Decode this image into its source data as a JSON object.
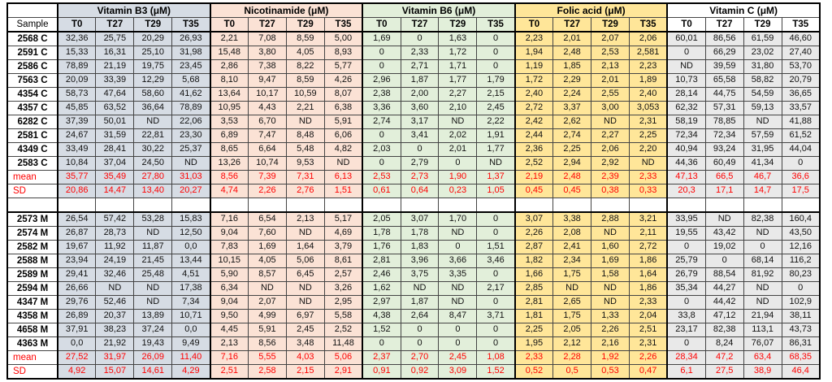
{
  "table": {
    "corner_label": "",
    "sample_header": "Sample",
    "timepoints": [
      "T0",
      "T27",
      "T29",
      "T35"
    ],
    "stat_color": "#ff0000",
    "groups": [
      {
        "title": "Vitamin B3 (μM)",
        "fill": "#d6dce4",
        "header_fill": "#d6dce4"
      },
      {
        "title": "Nicotinamide (μM)",
        "fill": "#fbe2d5",
        "header_fill": "#fbe2d5"
      },
      {
        "title": "Vitamin B6 (μM)",
        "fill": "#e2efda",
        "header_fill": "#e2efda"
      },
      {
        "title": "Folic acid (μM)",
        "fill": "#ffe699",
        "header_fill": "#ffe699"
      },
      {
        "title": "Vitamin C (μM)",
        "fill": "#e9e9e9",
        "header_fill": "#ffffff"
      }
    ],
    "sections": [
      {
        "rows": [
          {
            "label": "2568 C",
            "type": "sample",
            "values": [
              "32,36",
              "25,75",
              "20,29",
              "26,93",
              "2,21",
              "7,08",
              "8,59",
              "5,00",
              "1,69",
              "0",
              "1,63",
              "0",
              "2,23",
              "2,01",
              "2,07",
              "2,06",
              "60,01",
              "86,56",
              "61,59",
              "46,60"
            ]
          },
          {
            "label": "2591 C",
            "type": "sample",
            "values": [
              "15,33",
              "16,31",
              "25,10",
              "31,98",
              "15,48",
              "3,80",
              "4,05",
              "8,93",
              "0",
              "2,33",
              "1,72",
              "0",
              "1,94",
              "2,48",
              "2,53",
              "2,581",
              "0",
              "66,29",
              "23,02",
              "27,40"
            ]
          },
          {
            "label": "2586 C",
            "type": "sample",
            "values": [
              "78,89",
              "21,19",
              "19,75",
              "23,45",
              "2,86",
              "7,38",
              "8,22",
              "5,77",
              "0",
              "2,71",
              "1,71",
              "0",
              "1,19",
              "1,85",
              "2,13",
              "2,23",
              "ND",
              "39,59",
              "31,80",
              "53,70"
            ]
          },
          {
            "label": "7563 C",
            "type": "sample",
            "values": [
              "20,09",
              "33,39",
              "12,29",
              "5,68",
              "8,10",
              "9,47",
              "8,59",
              "4,26",
              "2,96",
              "1,87",
              "1,77",
              "1,79",
              "1,72",
              "2,29",
              "2,01",
              "1,89",
              "10,73",
              "65,58",
              "58,82",
              "20,79"
            ]
          },
          {
            "label": "4354 C",
            "type": "sample",
            "values": [
              "58,73",
              "47,64",
              "58,60",
              "41,62",
              "13,64",
              "10,17",
              "10,59",
              "8,07",
              "2,38",
              "2,00",
              "2,27",
              "2,15",
              "2,40",
              "2,24",
              "2,55",
              "2,40",
              "28,14",
              "44,75",
              "54,59",
              "36,65"
            ]
          },
          {
            "label": "4357 C",
            "type": "sample",
            "values": [
              "45,85",
              "63,52",
              "36,64",
              "78,89",
              "10,95",
              "4,43",
              "2,21",
              "6,38",
              "3,36",
              "3,60",
              "2,10",
              "2,45",
              "2,72",
              "3,37",
              "3,00",
              "3,053",
              "62,32",
              "57,31",
              "59,13",
              "33,57"
            ]
          },
          {
            "label": "6282 C",
            "type": "sample",
            "values": [
              "37,39",
              "50,01",
              "ND",
              "22,06",
              "3,53",
              "6,70",
              "ND",
              "5,91",
              "2,74",
              "3,17",
              "ND",
              "2,22",
              "2,42",
              "2,62",
              "ND",
              "2,31",
              "58,19",
              "78,85",
              "ND",
              "41,88"
            ]
          },
          {
            "label": "2581 C",
            "type": "sample",
            "values": [
              "24,67",
              "31,59",
              "22,81",
              "23,30",
              "6,89",
              "7,47",
              "8,48",
              "6,06",
              "0",
              "3,41",
              "2,02",
              "1,91",
              "2,44",
              "2,74",
              "2,27",
              "2,25",
              "72,34",
              "72,34",
              "57,59",
              "61,52"
            ]
          },
          {
            "label": "4349 C",
            "type": "sample",
            "values": [
              "33,49",
              "28,41",
              "30,22",
              "25,37",
              "8,65",
              "6,64",
              "5,48",
              "4,82",
              "2,03",
              "0",
              "2,01",
              "1,77",
              "2,36",
              "2,25",
              "2,06",
              "2,20",
              "40,94",
              "93,24",
              "31,95",
              "44,04"
            ]
          },
          {
            "label": "2583 C",
            "type": "sample",
            "values": [
              "10,84",
              "37,04",
              "24,50",
              "ND",
              "13,26",
              "10,74",
              "9,53",
              "ND",
              "0",
              "2,79",
              "0",
              "ND",
              "2,52",
              "2,94",
              "2,92",
              "ND",
              "44,36",
              "60,49",
              "41,34",
              "0"
            ]
          },
          {
            "label": "mean",
            "type": "mean",
            "values": [
              "35,77",
              "35,49",
              "27,80",
              "31,03",
              "8,56",
              "7,39",
              "7,31",
              "6,13",
              "2,53",
              "2,73",
              "1,90",
              "1,37",
              "2,19",
              "2,48",
              "2,39",
              "2,33",
              "47,13",
              "66,5",
              "46,7",
              "36,6"
            ]
          },
          {
            "label": "SD",
            "type": "sd",
            "values": [
              "20,86",
              "14,47",
              "13,40",
              "20,27",
              "4,74",
              "2,26",
              "2,76",
              "1,51",
              "0,61",
              "0,64",
              "0,23",
              "1,05",
              "0,45",
              "0,45",
              "0,38",
              "0,33",
              "20,3",
              "17,1",
              "14,7",
              "17,5"
            ]
          }
        ]
      },
      {
        "rows": [
          {
            "label": "2573 M",
            "type": "sample",
            "values": [
              "26,54",
              "57,42",
              "53,28",
              "15,83",
              "7,16",
              "6,54",
              "2,13",
              "5,17",
              "2,05",
              "3,07",
              "1,70",
              "0",
              "3,07",
              "3,38",
              "2,88",
              "3,21",
              "33,95",
              "ND",
              "82,38",
              "160,4"
            ]
          },
          {
            "label": "2574 M",
            "type": "sample",
            "values": [
              "26,87",
              "28,73",
              "ND",
              "12,50",
              "9,04",
              "7,60",
              "ND",
              "4,69",
              "1,78",
              "1,78",
              "ND",
              "0",
              "2,26",
              "2,08",
              "ND",
              "2,11",
              "19,55",
              "43,42",
              "ND",
              "43,50"
            ]
          },
          {
            "label": "2582 M",
            "type": "sample",
            "values": [
              "19,67",
              "11,92",
              "11,87",
              "0,0",
              "7,83",
              "1,69",
              "1,64",
              "3,79",
              "1,76",
              "1,83",
              "0",
              "1,51",
              "2,87",
              "2,41",
              "1,60",
              "2,72",
              "0",
              "19,02",
              "0",
              "12,16"
            ]
          },
          {
            "label": "2588 M",
            "type": "sample",
            "values": [
              "23,94",
              "24,19",
              "21,45",
              "13,44",
              "10,15",
              "4,05",
              "5,06",
              "8,61",
              "2,81",
              "3,96",
              "3,66",
              "3,46",
              "1,82",
              "2,34",
              "1,69",
              "1,86",
              "25,79",
              "0",
              "68,14",
              "116,2"
            ]
          },
          {
            "label": "2589 M",
            "type": "sample",
            "values": [
              "29,41",
              "32,46",
              "25,48",
              "4,51",
              "5,90",
              "8,57",
              "6,45",
              "2,57",
              "2,46",
              "3,75",
              "3,35",
              "0",
              "1,66",
              "1,75",
              "1,58",
              "1,64",
              "26,79",
              "88,54",
              "81,92",
              "80,23"
            ]
          },
          {
            "label": "2594 M",
            "type": "sample",
            "values": [
              "26,66",
              "ND",
              "ND",
              "17,38",
              "6,34",
              "ND",
              "ND",
              "3,26",
              "1,62",
              "ND",
              "ND",
              "2,17",
              "2,85",
              "ND",
              "ND",
              "1,86",
              "35,34",
              "44,27",
              "ND",
              "0"
            ]
          },
          {
            "label": "4347 M",
            "type": "sample",
            "values": [
              "29,76",
              "52,46",
              "ND",
              "7,34",
              "9,04",
              "2,07",
              "ND",
              "2,95",
              "2,97",
              "1,87",
              "ND",
              "0",
              "2,81",
              "2,65",
              "ND",
              "2,33",
              "0",
              "44,42",
              "ND",
              "102,9"
            ]
          },
          {
            "label": "4358 M",
            "type": "sample",
            "values": [
              "26,89",
              "20,37",
              "13,89",
              "10,71",
              "9,50",
              "4,99",
              "6,97",
              "5,58",
              "4,38",
              "2,64",
              "8,47",
              "3,71",
              "1,81",
              "1,75",
              "1,33",
              "2,04",
              "33,8",
              "47,12",
              "21,94",
              "38,11"
            ]
          },
          {
            "label": "4658 M",
            "type": "sample",
            "values": [
              "37,91",
              "38,23",
              "37,24",
              "0,0",
              "4,45",
              "5,91",
              "2,45",
              "2,52",
              "1,52",
              "0",
              "0",
              "0",
              "2,25",
              "2,05",
              "2,26",
              "2,51",
              "23,17",
              "82,38",
              "113,1",
              "43,73"
            ]
          },
          {
            "label": "4363 M",
            "type": "sample",
            "values": [
              "0,0",
              "21,92",
              "19,43",
              "9,49",
              "2,13",
              "8,56",
              "3,48",
              "11,48",
              "0",
              "0",
              "0",
              "0",
              "1,95",
              "2,12",
              "2,16",
              "2,31",
              "0",
              "8,24",
              "76,07",
              "86,31"
            ]
          },
          {
            "label": "mean",
            "type": "mean",
            "values": [
              "27,52",
              "31,97",
              "26,09",
              "11,40",
              "7,16",
              "5,55",
              "4,03",
              "5,06",
              "2,37",
              "2,70",
              "2,45",
              "1,08",
              "2,33",
              "2,28",
              "1,92",
              "2,26",
              "28,34",
              "47,2",
              "63,4",
              "68,35"
            ]
          },
          {
            "label": "SD",
            "type": "sd",
            "values": [
              "4,92",
              "15,07",
              "14,61",
              "4,29",
              "2,51",
              "2,58",
              "2,15",
              "2,91",
              "0,91",
              "0,92",
              "3,09",
              "1,52",
              "0,52",
              "0,5",
              "0,53",
              "0,47",
              "6,1",
              "27,5",
              "38,9",
              "46,4"
            ]
          }
        ]
      }
    ]
  }
}
